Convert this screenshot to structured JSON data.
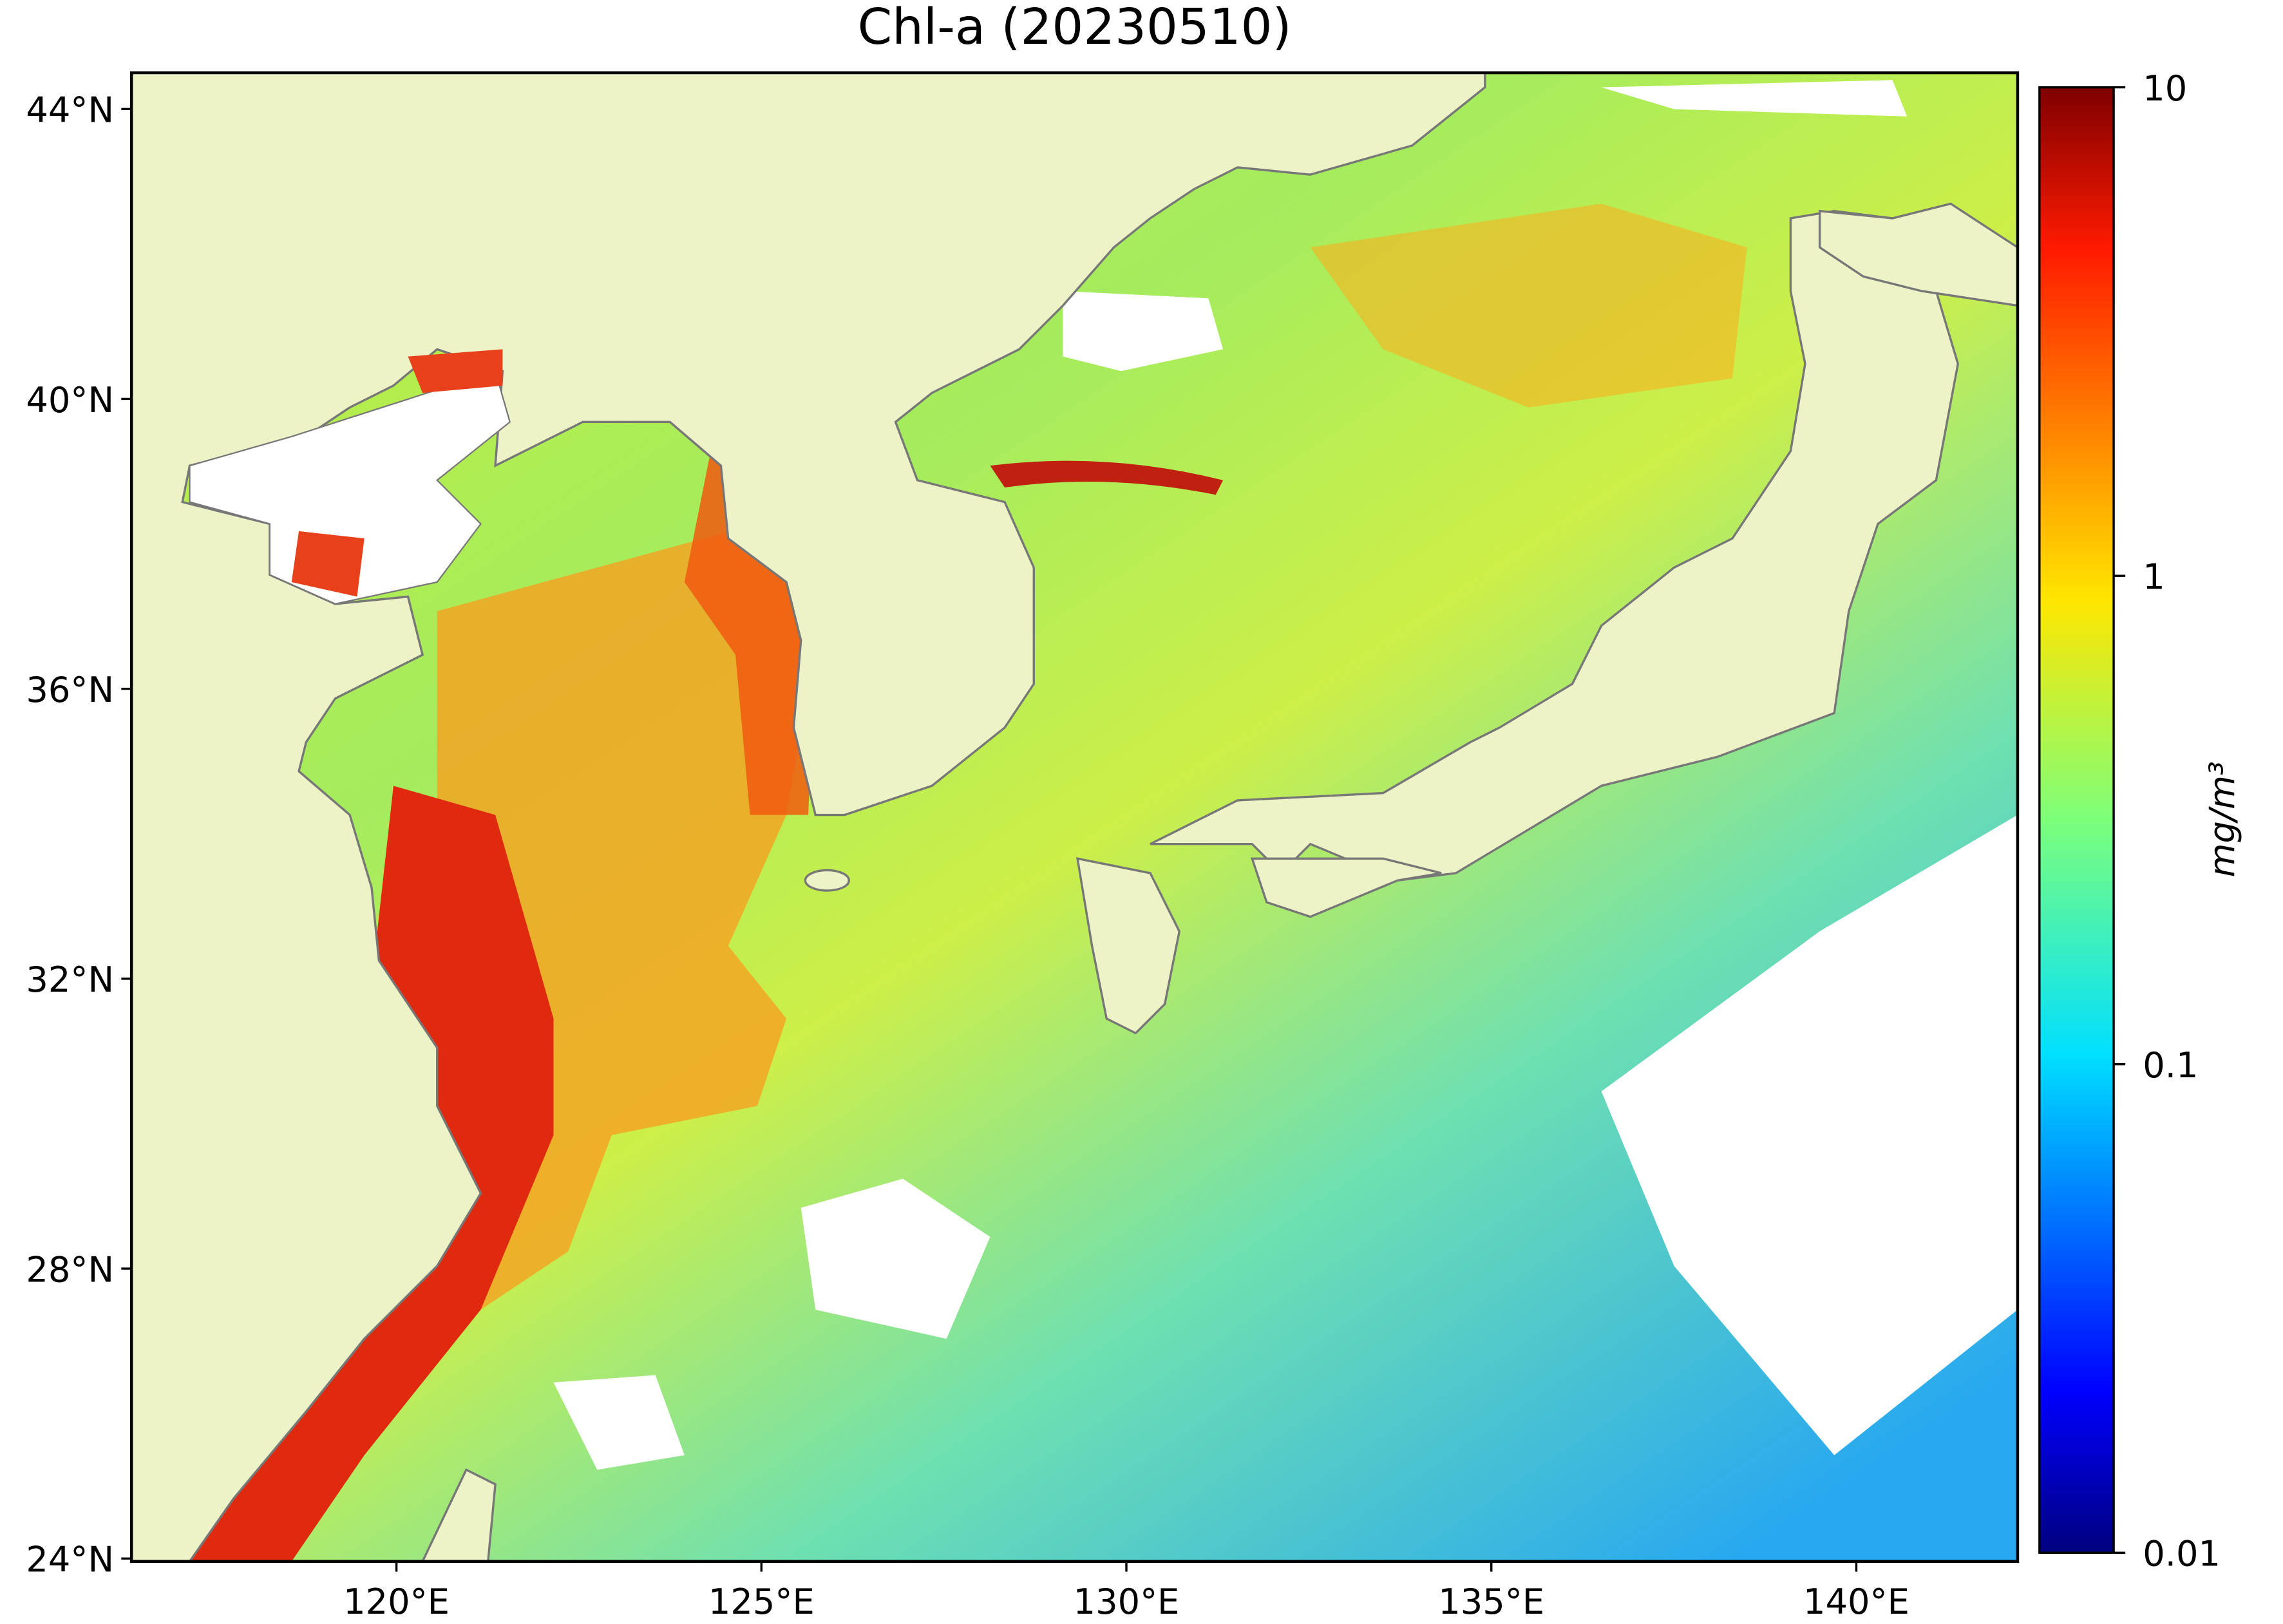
{
  "map": {
    "title": "Chl-a (20230510)",
    "xlim": [
      116.37,
      142.21
    ],
    "ylim": [
      23.96,
      44.5
    ],
    "xticks": [
      {
        "value": 120,
        "label": "120°E"
      },
      {
        "value": 125,
        "label": "125°E"
      },
      {
        "value": 130,
        "label": "130°E"
      },
      {
        "value": 135,
        "label": "135°E"
      },
      {
        "value": 140,
        "label": "140°E"
      }
    ],
    "yticks": [
      {
        "value": 24,
        "label": "24°N"
      },
      {
        "value": 28,
        "label": "28°N"
      },
      {
        "value": 32,
        "label": "32°N"
      },
      {
        "value": 36,
        "label": "36°N"
      },
      {
        "value": 40,
        "label": "40°N"
      },
      {
        "value": 44,
        "label": "44°N"
      }
    ],
    "colorbar": {
      "label": "mg/m³",
      "lim": [
        0.01,
        10
      ],
      "ticks": [
        0.01,
        0.1,
        1,
        10
      ],
      "scale": "log",
      "colormap": "jet"
    }
  }
}
